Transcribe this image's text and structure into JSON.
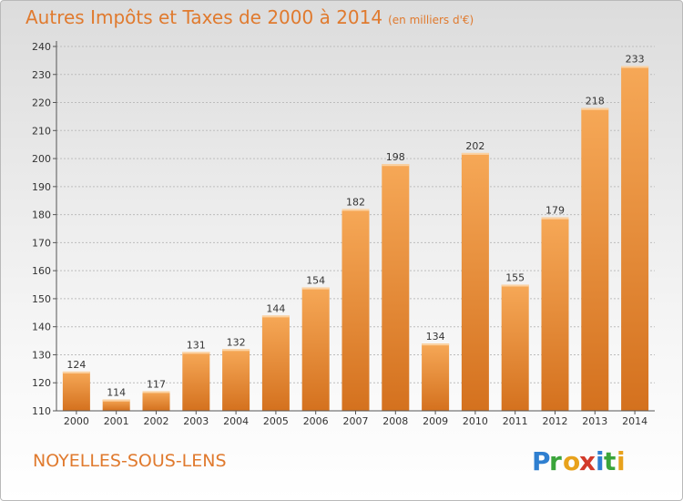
{
  "header": {
    "title": "Autres Impôts et Taxes de 2000 à 2014",
    "unit": "(en milliers d'€)"
  },
  "footer": {
    "commune": "NOYELLES-SOUS-LENS",
    "logo_text": "Proxiti"
  },
  "colors": {
    "title": "#e07a2e",
    "bar_light": "#f6a857",
    "bar_dark": "#d4711e",
    "axis": "#555555"
  },
  "chart_data": {
    "type": "bar",
    "title": "Autres Impôts et Taxes de 2000 à 2014",
    "subtitle": "(en milliers d'€)",
    "xlabel": "",
    "ylabel": "",
    "categories": [
      "2000",
      "2001",
      "2002",
      "2003",
      "2004",
      "2005",
      "2006",
      "2007",
      "2008",
      "2009",
      "2010",
      "2011",
      "2012",
      "2013",
      "2014"
    ],
    "values": [
      124,
      114,
      117,
      131,
      132,
      144,
      154,
      182,
      198,
      134,
      202,
      155,
      179,
      218,
      233
    ],
    "ylim": [
      110,
      240
    ],
    "yticks": [
      110,
      120,
      130,
      140,
      150,
      160,
      170,
      180,
      190,
      200,
      210,
      220,
      230,
      240
    ],
    "grid": true,
    "data_labels": true
  }
}
